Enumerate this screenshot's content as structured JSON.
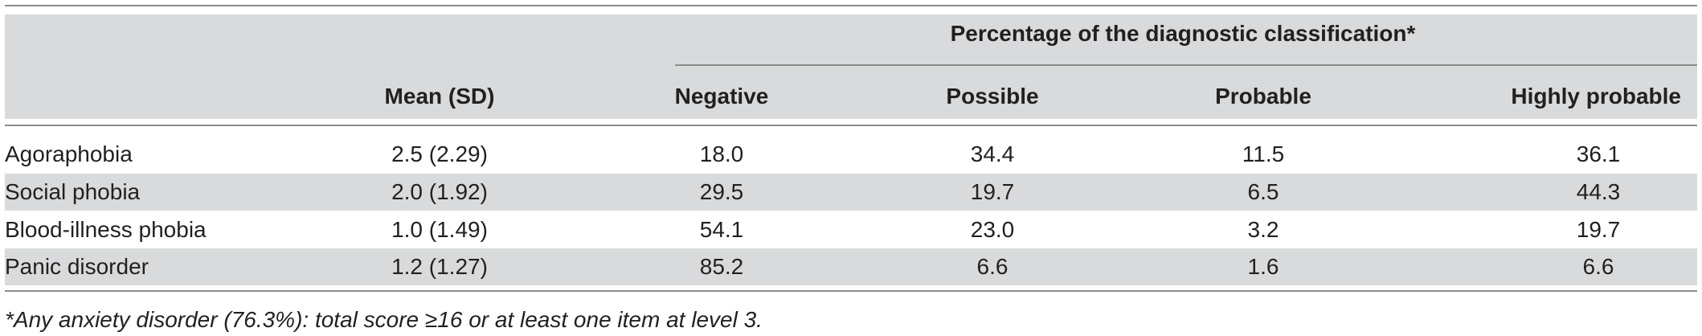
{
  "table": {
    "group_header": "Percentage of the diagnostic classification*",
    "columns": [
      "",
      "Mean (SD)",
      "Negative",
      "Possible",
      "Probable",
      "Highly probable"
    ],
    "rows": [
      {
        "label": "Agoraphobia",
        "mean_sd": "2.5 (2.29)",
        "negative": "18.0",
        "possible": "34.4",
        "probable": "11.5",
        "highly_probable": "36.1"
      },
      {
        "label": "Social phobia",
        "mean_sd": "2.0 (1.92)",
        "negative": "29.5",
        "possible": "19.7",
        "probable": "6.5",
        "highly_probable": "44.3"
      },
      {
        "label": "Blood-illness phobia",
        "mean_sd": "1.0 (1.49)",
        "negative": "54.1",
        "possible": "23.0",
        "probable": "3.2",
        "highly_probable": "19.7"
      },
      {
        "label": "Panic disorder",
        "mean_sd": "1.2 (1.27)",
        "negative": "85.2",
        "possible": "6.6",
        "probable": "1.6",
        "highly_probable": "6.6"
      }
    ],
    "footnote": "*Any anxiety disorder (76.3%): total score ≥16 or at least one item at level 3."
  },
  "colors": {
    "header_shade": "#d9dadb",
    "row_shade": "#d9dadb",
    "rule": "#8c8c8c",
    "text": "#231f20"
  }
}
